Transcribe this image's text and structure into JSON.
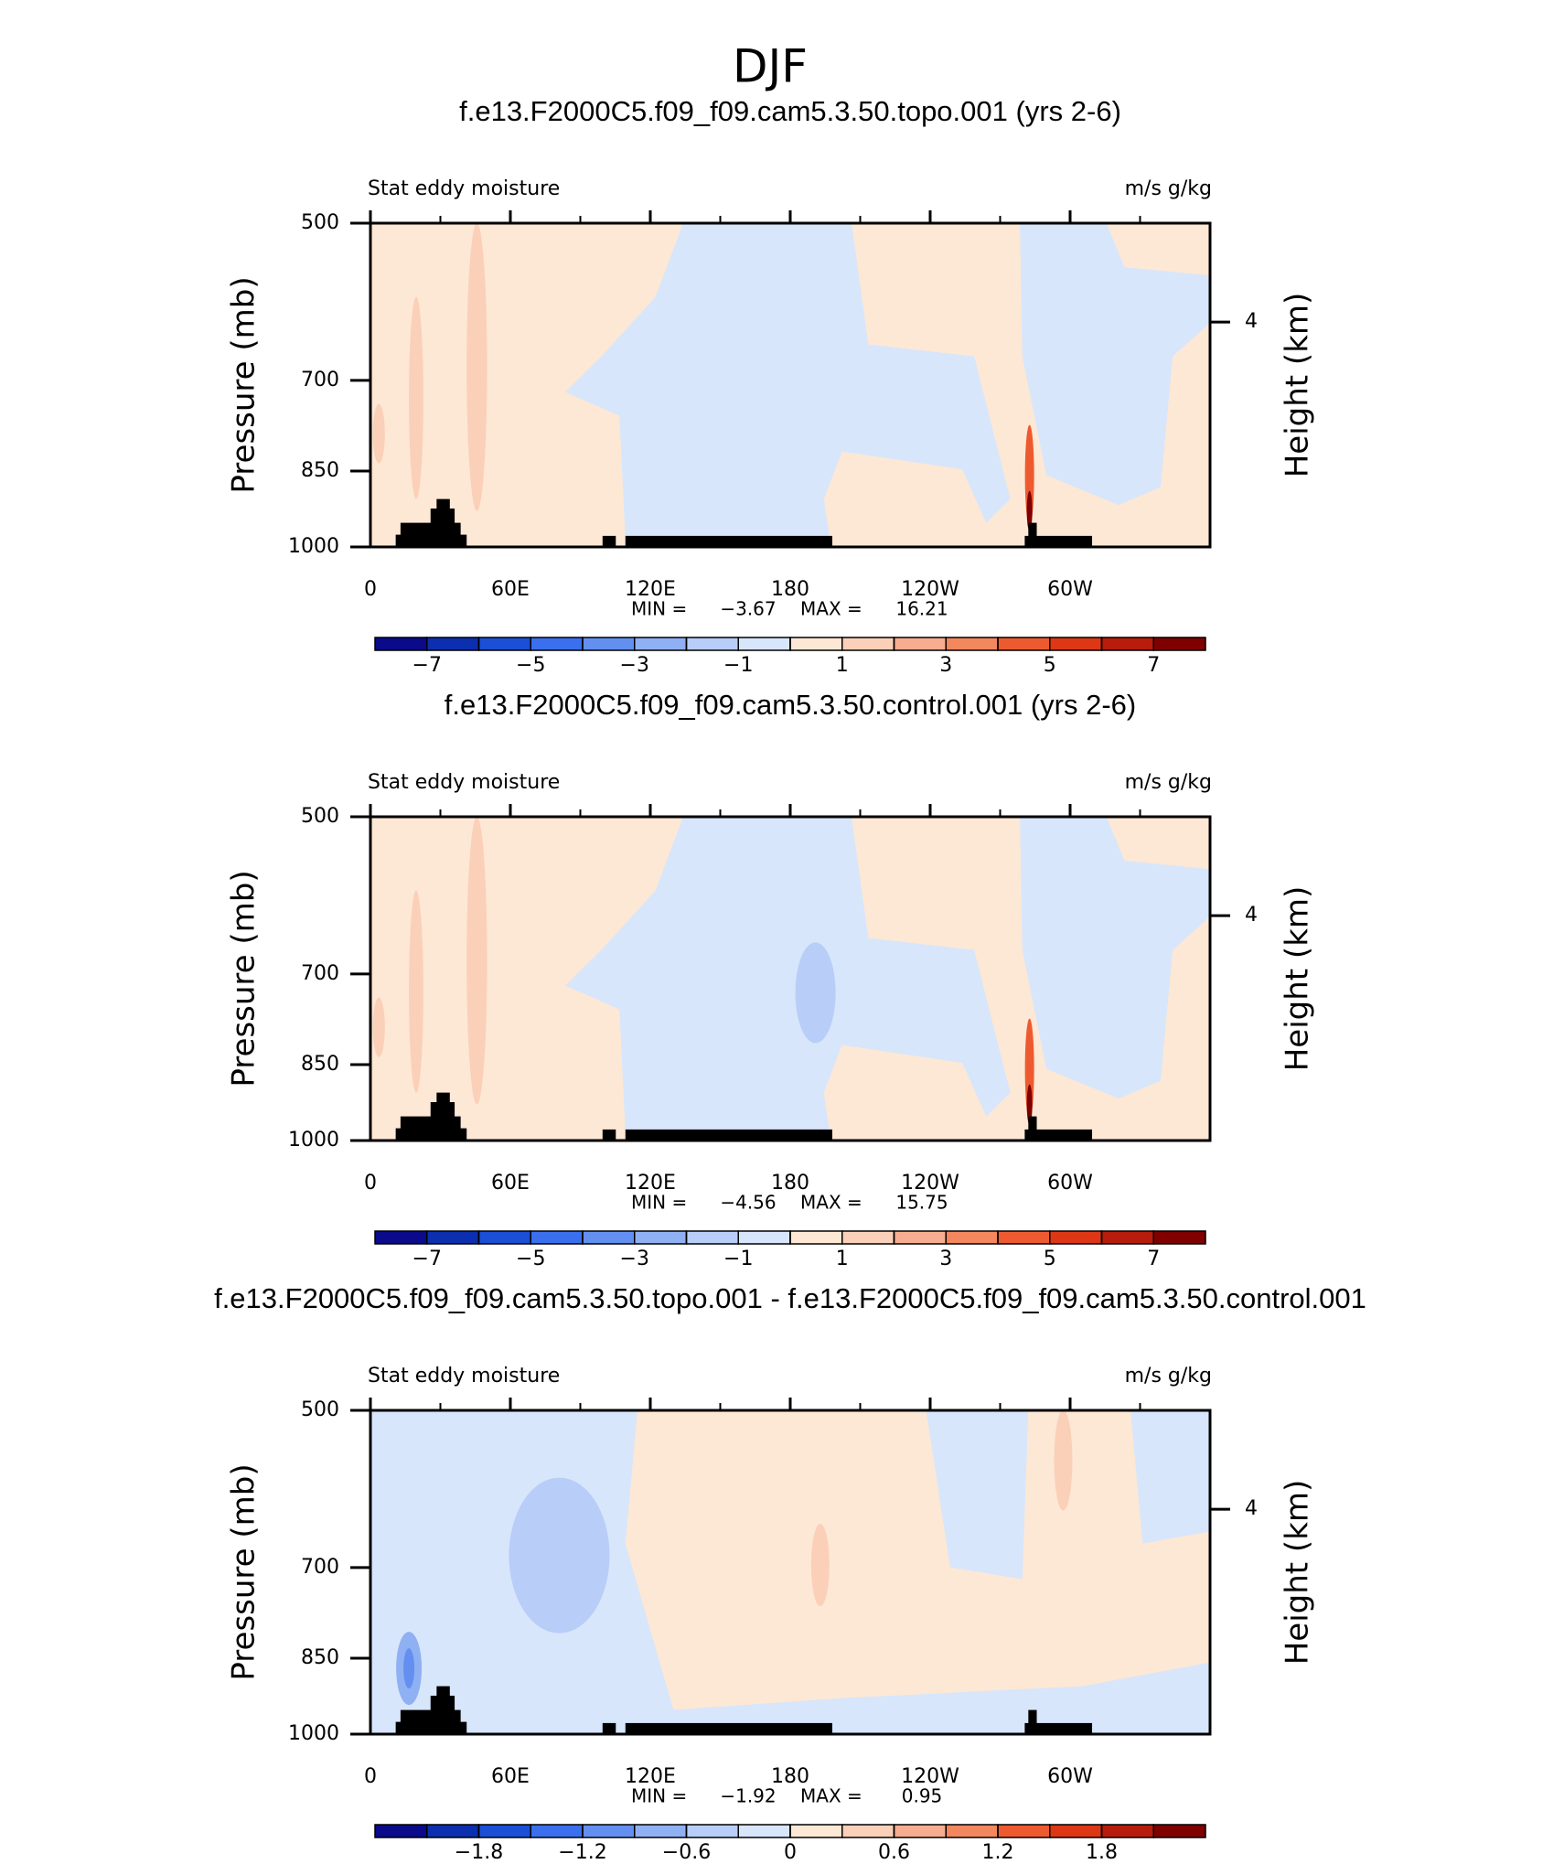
{
  "title": "DJF",
  "chart_data": [
    {
      "type": "contour",
      "title": "f.e13.F2000C5.f09_f09.cam5.3.50.topo.001 (yrs 2-6)",
      "left_label": "Stat eddy moisture",
      "right_label": "m/s g/kg",
      "ylabel": "Pressure (mb)",
      "y2label": "Height (km)",
      "xlim": [
        0,
        360
      ],
      "xticks": [
        0,
        {
          "value": 60,
          "label": "60E"
        },
        {
          "value": 120,
          "label": "120E"
        },
        180,
        {
          "value": 240,
          "label": "120W"
        },
        {
          "value": 300,
          "label": "60W"
        }
      ],
      "ylim": [
        1000,
        500
      ],
      "yscale": "log",
      "yticks": [
        500,
        700,
        850,
        1000
      ],
      "y2lim": [
        0,
        5.76
      ],
      "y2ticks": [
        4
      ],
      "min_label": "MIN =",
      "min": {
        "value": -3.67,
        "label": "−3.67"
      },
      "max_label": "MAX =",
      "max": 16.21,
      "levels": [
        -7,
        -6,
        -5,
        -4,
        -3,
        -2,
        -1,
        0,
        1,
        2,
        3,
        4,
        5,
        6,
        7
      ],
      "colorbar_ticks": [
        {
          "value": -7,
          "label": "−7"
        },
        {
          "value": -5,
          "label": "−5"
        },
        {
          "value": -3,
          "label": "−3"
        },
        {
          "value": -1,
          "label": "−1"
        },
        1,
        3,
        5,
        7
      ],
      "colors": [
        "#0a0a8a",
        "#0c2fb0",
        "#1a4fd6",
        "#3a6fee",
        "#6390f0",
        "#8fb0f3",
        "#b8cdf7",
        "#d7e6fb",
        "#fde8d5",
        "#fbd0b8",
        "#f7ad8f",
        "#f3875e",
        "#ee5a2f",
        "#de3716",
        "#b81c0c",
        "#800000"
      ]
    },
    {
      "type": "contour",
      "title": "f.e13.F2000C5.f09_f09.cam5.3.50.control.001 (yrs 2-6)",
      "left_label": "Stat eddy moisture",
      "right_label": "m/s g/kg",
      "ylabel": "Pressure (mb)",
      "y2label": "Height (km)",
      "xlim": [
        0,
        360
      ],
      "xticks": [
        0,
        {
          "value": 60,
          "label": "60E"
        },
        {
          "value": 120,
          "label": "120E"
        },
        180,
        {
          "value": 240,
          "label": "120W"
        },
        {
          "value": 300,
          "label": "60W"
        }
      ],
      "ylim": [
        1000,
        500
      ],
      "yscale": "log",
      "yticks": [
        500,
        700,
        850,
        1000
      ],
      "y2lim": [
        0,
        5.76
      ],
      "y2ticks": [
        4
      ],
      "min_label": "MIN =",
      "min": {
        "value": -4.56,
        "label": "−4.56"
      },
      "max_label": "MAX =",
      "max": 15.75,
      "levels": [
        -7,
        -6,
        -5,
        -4,
        -3,
        -2,
        -1,
        0,
        1,
        2,
        3,
        4,
        5,
        6,
        7
      ],
      "colorbar_ticks": [
        {
          "value": -7,
          "label": "−7"
        },
        {
          "value": -5,
          "label": "−5"
        },
        {
          "value": -3,
          "label": "−3"
        },
        {
          "value": -1,
          "label": "−1"
        },
        1,
        3,
        5,
        7
      ],
      "colors": [
        "#0a0a8a",
        "#0c2fb0",
        "#1a4fd6",
        "#3a6fee",
        "#6390f0",
        "#8fb0f3",
        "#b8cdf7",
        "#d7e6fb",
        "#fde8d5",
        "#fbd0b8",
        "#f7ad8f",
        "#f3875e",
        "#ee5a2f",
        "#de3716",
        "#b81c0c",
        "#800000"
      ]
    },
    {
      "type": "contour",
      "title": "f.e13.F2000C5.f09_f09.cam5.3.50.topo.001 - f.e13.F2000C5.f09_f09.cam5.3.50.control.001",
      "left_label": "Stat eddy moisture",
      "right_label": "m/s g/kg",
      "ylabel": "Pressure (mb)",
      "y2label": "Height (km)",
      "xlim": [
        0,
        360
      ],
      "xticks": [
        0,
        {
          "value": 60,
          "label": "60E"
        },
        {
          "value": 120,
          "label": "120E"
        },
        180,
        {
          "value": 240,
          "label": "120W"
        },
        {
          "value": 300,
          "label": "60W"
        }
      ],
      "ylim": [
        1000,
        500
      ],
      "yscale": "log",
      "yticks": [
        500,
        700,
        850,
        1000
      ],
      "y2lim": [
        0,
        5.76
      ],
      "y2ticks": [
        4
      ],
      "min_label": "MIN =",
      "min": {
        "value": -1.92,
        "label": "−1.92"
      },
      "max_label": "MAX =",
      "max": 0.95,
      "levels": [
        -2.1,
        -1.8,
        -1.5,
        -1.2,
        -0.9,
        -0.6,
        -0.3,
        0,
        0.3,
        0.6,
        0.9,
        1.2,
        1.5,
        1.8,
        2.1
      ],
      "colorbar_ticks": [
        {
          "value": -1.8,
          "label": "−1.8"
        },
        {
          "value": -1.2,
          "label": "−1.2"
        },
        {
          "value": -0.6,
          "label": "−0.6"
        },
        0,
        0.6,
        1.2,
        1.8
      ],
      "colors": [
        "#0a0a8a",
        "#0c2fb0",
        "#1a4fd6",
        "#3a6fee",
        "#6390f0",
        "#8fb0f3",
        "#b8cdf7",
        "#d7e6fb",
        "#fde8d5",
        "#fbd0b8",
        "#f7ad8f",
        "#f3875e",
        "#ee5a2f",
        "#de3716",
        "#b81c0c",
        "#800000"
      ]
    }
  ]
}
